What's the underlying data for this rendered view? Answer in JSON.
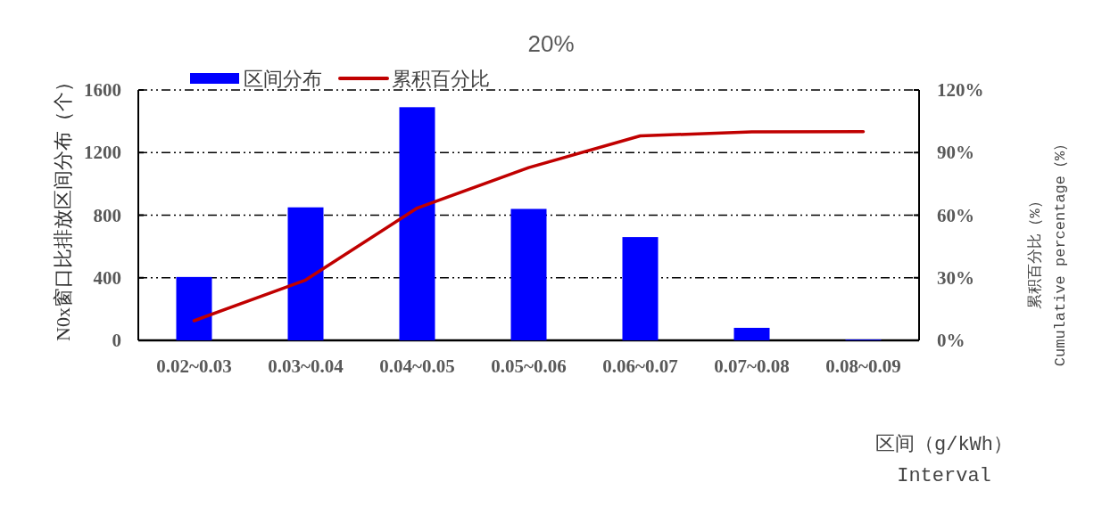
{
  "chart_data": {
    "type": "bar",
    "title": "20%",
    "xlabel": "区间（g/kWh）\nInterval",
    "ylabel": "N0x窗口比排放区间分布（个）",
    "y2label": "累积百分比（%）\nCumulative percentage（%）",
    "categories": [
      "0.02~0.03",
      "0.03~0.04",
      "0.04~0.05",
      "0.05~0.06",
      "0.06~0.07",
      "0.07~0.08",
      "0.08~0.09"
    ],
    "series": [
      {
        "name": "区间分布",
        "color": "#0000ff",
        "values": [
          405,
          850,
          1490,
          840,
          660,
          80,
          5
        ]
      },
      {
        "name": "累积百分比",
        "type": "line",
        "axis": "y2",
        "color": "#c00000",
        "values": [
          9.4,
          28.9,
          63.4,
          82.8,
          98.0,
          99.9,
          100
        ]
      }
    ],
    "ylim": [
      0,
      1600
    ],
    "yticks": [
      0,
      400,
      800,
      1200,
      1600
    ],
    "y2lim": [
      0,
      120
    ],
    "y2ticks": [
      {
        "value": 0,
        "label": "0%"
      },
      {
        "value": 30,
        "label": "30%"
      },
      {
        "value": 60,
        "label": "60%"
      },
      {
        "value": 90,
        "label": "90%"
      },
      {
        "value": 120,
        "label": "120%"
      }
    ],
    "grid": "y",
    "legend": "top left"
  }
}
